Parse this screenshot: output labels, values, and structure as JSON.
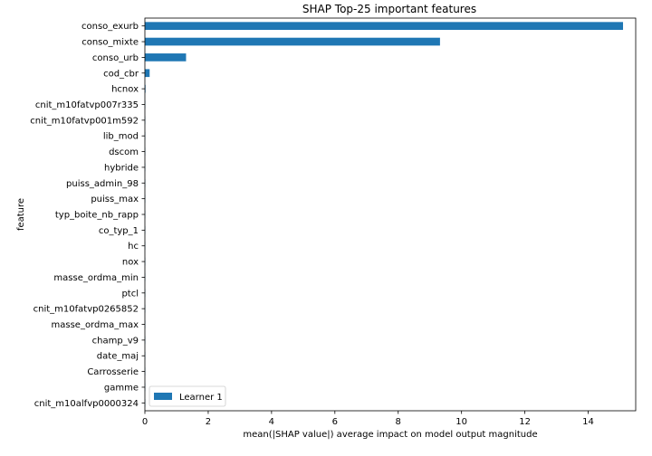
{
  "chart_data": {
    "type": "bar",
    "orientation": "horizontal",
    "title": "SHAP Top-25 important features",
    "xlabel": "mean(|SHAP value|) average impact on model output magnitude",
    "ylabel": "feature",
    "xlim": [
      0,
      15.5
    ],
    "xticks": [
      0,
      2,
      4,
      6,
      8,
      10,
      12,
      14
    ],
    "grid": false,
    "legend_position": "lower-left",
    "bar_color": "#1f77b4",
    "categories": [
      "conso_exurb",
      "conso_mixte",
      "conso_urb",
      "cod_cbr",
      "hcnox",
      "cnit_m10fatvp007r335",
      "cnit_m10fatvp001m592",
      "lib_mod",
      "dscom",
      "hybride",
      "puiss_admin_98",
      "puiss_max",
      "typ_boite_nb_rapp",
      "co_typ_1",
      "hc",
      "nox",
      "masse_ordma_min",
      "ptcl",
      "cnit_m10fatvp0265852",
      "masse_ordma_max",
      "champ_v9",
      "date_maj",
      "Carrosserie",
      "gamme",
      "cnit_m10alfvp0000324"
    ],
    "series": [
      {
        "name": "Learner 1",
        "values": [
          15.1,
          9.32,
          1.3,
          0.15,
          0.02,
          0.01,
          0.01,
          0.01,
          0.01,
          0.01,
          0.01,
          0.01,
          0.01,
          0.01,
          0.01,
          0.01,
          0.01,
          0.01,
          0.01,
          0.01,
          0.01,
          0.01,
          0.01,
          0.01,
          0.01
        ]
      }
    ]
  }
}
